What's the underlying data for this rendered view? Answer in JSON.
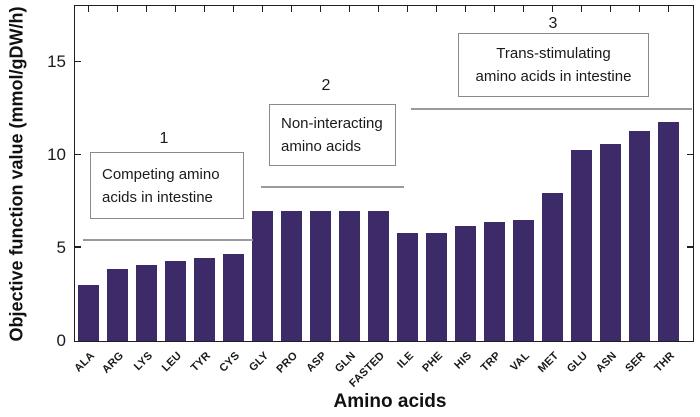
{
  "colors": {
    "bar": "#3d2a68",
    "frame": "#1f1f1f",
    "bracket_line": "#9a9a9a",
    "box_border": "#8a8a8a",
    "text": "#1a1a1a"
  },
  "chart_data": {
    "type": "bar",
    "title": "",
    "xlabel": "Amino acids",
    "ylabel": "Objective function value (mmol/gDW/h)",
    "categories": [
      "ALA",
      "ARG",
      "LYS",
      "LEU",
      "TYR",
      "CYS",
      "GLY",
      "PRO",
      "ASP",
      "GLN",
      "FASTED",
      "ILE",
      "PHE",
      "HIS",
      "TRP",
      "VAL",
      "MET",
      "GLU",
      "ASN",
      "SER",
      "THR"
    ],
    "values": [
      3.0,
      3.9,
      4.1,
      4.3,
      4.5,
      4.7,
      7.0,
      7.0,
      7.0,
      7.0,
      7.0,
      5.8,
      5.8,
      6.2,
      6.4,
      6.5,
      8.0,
      10.3,
      10.6,
      11.3,
      11.8
    ],
    "ylim": [
      0,
      18
    ],
    "yticks": [
      0,
      5,
      10,
      15
    ],
    "grid": false,
    "legend": null,
    "groups": [
      {
        "number": "1",
        "label_lines": [
          "Competing amino",
          "acids in intestine"
        ],
        "from": "ALA",
        "to": "CYS"
      },
      {
        "number": "2",
        "label_lines": [
          "Non-interacting",
          "amino acids"
        ],
        "from": "GLY",
        "to": "FASTED"
      },
      {
        "number": "3",
        "label_lines": [
          "Trans-stimulating",
          "amino acids in intestine"
        ],
        "from": "ILE",
        "to": "THR"
      }
    ]
  }
}
